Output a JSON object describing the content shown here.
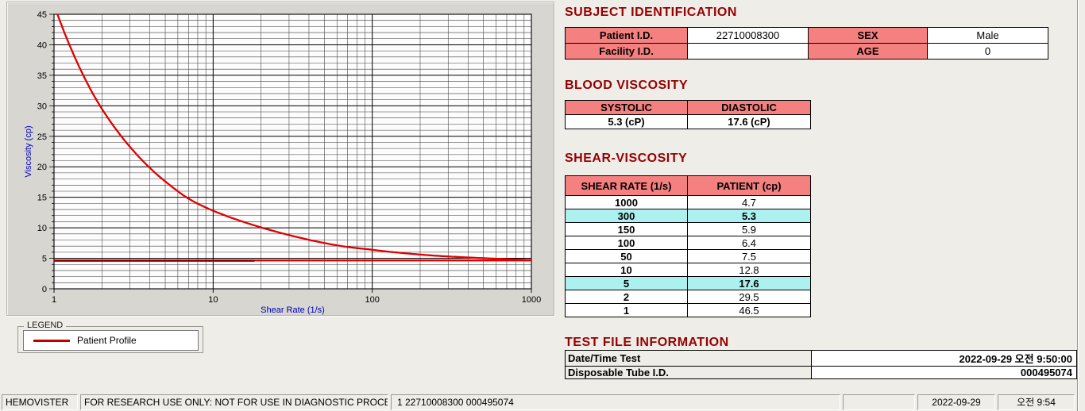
{
  "window": {
    "bg": "#EEEDE8",
    "title_color": "#970000",
    "header_fill": "#F58080",
    "highlight_fill": "#ACF0F0"
  },
  "chart": {
    "chart_data": {
      "type": "line",
      "title": "",
      "xlabel": "Shear Rate (1/s)",
      "ylabel": "Viscosity (cp)",
      "x_scale": "log",
      "xlim": [
        1,
        1000
      ],
      "ylim": [
        0,
        45
      ],
      "y_major_ticks": [
        0,
        5,
        10,
        15,
        20,
        25,
        30,
        35,
        40,
        45
      ],
      "x_major_ticks": [
        "1",
        "10",
        "100",
        "1000"
      ],
      "grid": "on",
      "axis_label_color": "#0000BB",
      "series": [
        {
          "name": "Patient Profile",
          "color": "#E00000",
          "width": 2.3,
          "smooth": true,
          "x": [
            1,
            2,
            5,
            10,
            50,
            100,
            150,
            300,
            1000
          ],
          "y": [
            46.5,
            29.5,
            17.6,
            12.8,
            7.5,
            6.4,
            5.9,
            5.3,
            4.7
          ]
        },
        {
          "name": "baseline-full",
          "color": "#E00000",
          "width": 2.3,
          "smooth": false,
          "x": [
            1,
            1000
          ],
          "y": [
            4.65,
            4.65
          ]
        },
        {
          "name": "baseline-dark",
          "color": "#9B0000",
          "width": 2.6,
          "smooth": false,
          "x": [
            1,
            18
          ],
          "y": [
            4.6,
            4.6
          ]
        }
      ]
    }
  },
  "legend": {
    "title": "LEGEND",
    "series_label": "Patient Profile",
    "line_color": "#C00000"
  },
  "subject_identification": {
    "title": "SUBJECT IDENTIFICATION",
    "patient_id_label": "Patient I.D.",
    "patient_id": "22710008300",
    "sex_label": "SEX",
    "sex": "Male",
    "facility_id_label": "Facility I.D.",
    "facility_id": "",
    "age_label": "AGE",
    "age": "0"
  },
  "blood_viscosity": {
    "title": "BLOOD VISCOSITY",
    "systolic_label": "SYSTOLIC",
    "diastolic_label": "DIASTOLIC",
    "systolic_value": "5.3 (cP)",
    "diastolic_value": "17.6 (cP)"
  },
  "shear_viscosity": {
    "title": "SHEAR-VISCOSITY",
    "col_shear_rate": "SHEAR RATE (1/s)",
    "col_patient": "PATIENT (cp)",
    "rows": [
      {
        "rate": "1000",
        "value": "4.7",
        "highlight": false
      },
      {
        "rate": "300",
        "value": "5.3",
        "highlight": true
      },
      {
        "rate": "150",
        "value": "5.9",
        "highlight": false
      },
      {
        "rate": "100",
        "value": "6.4",
        "highlight": false
      },
      {
        "rate": "50",
        "value": "7.5",
        "highlight": false
      },
      {
        "rate": "10",
        "value": "12.8",
        "highlight": false
      },
      {
        "rate": "5",
        "value": "17.6",
        "highlight": true
      },
      {
        "rate": "2",
        "value": "29.5",
        "highlight": false
      },
      {
        "rate": "1",
        "value": "46.5",
        "highlight": false
      }
    ]
  },
  "test_file_information": {
    "title": "TEST FILE INFORMATION",
    "rows": [
      {
        "label": "Date/Time Test",
        "value": "2022-09-29   오전 9:50:00"
      },
      {
        "label": "Disposable Tube I.D.",
        "value": "000495074"
      }
    ]
  },
  "status_bar": {
    "app_name": "HEMOVISTER",
    "notice": "FOR RESEARCH USE ONLY: NOT FOR USE IN DIAGNOSTIC PROCEDURES",
    "test_info": "1  22710008300  000495074",
    "date": "2022-09-29",
    "time": "오전 9:54"
  }
}
